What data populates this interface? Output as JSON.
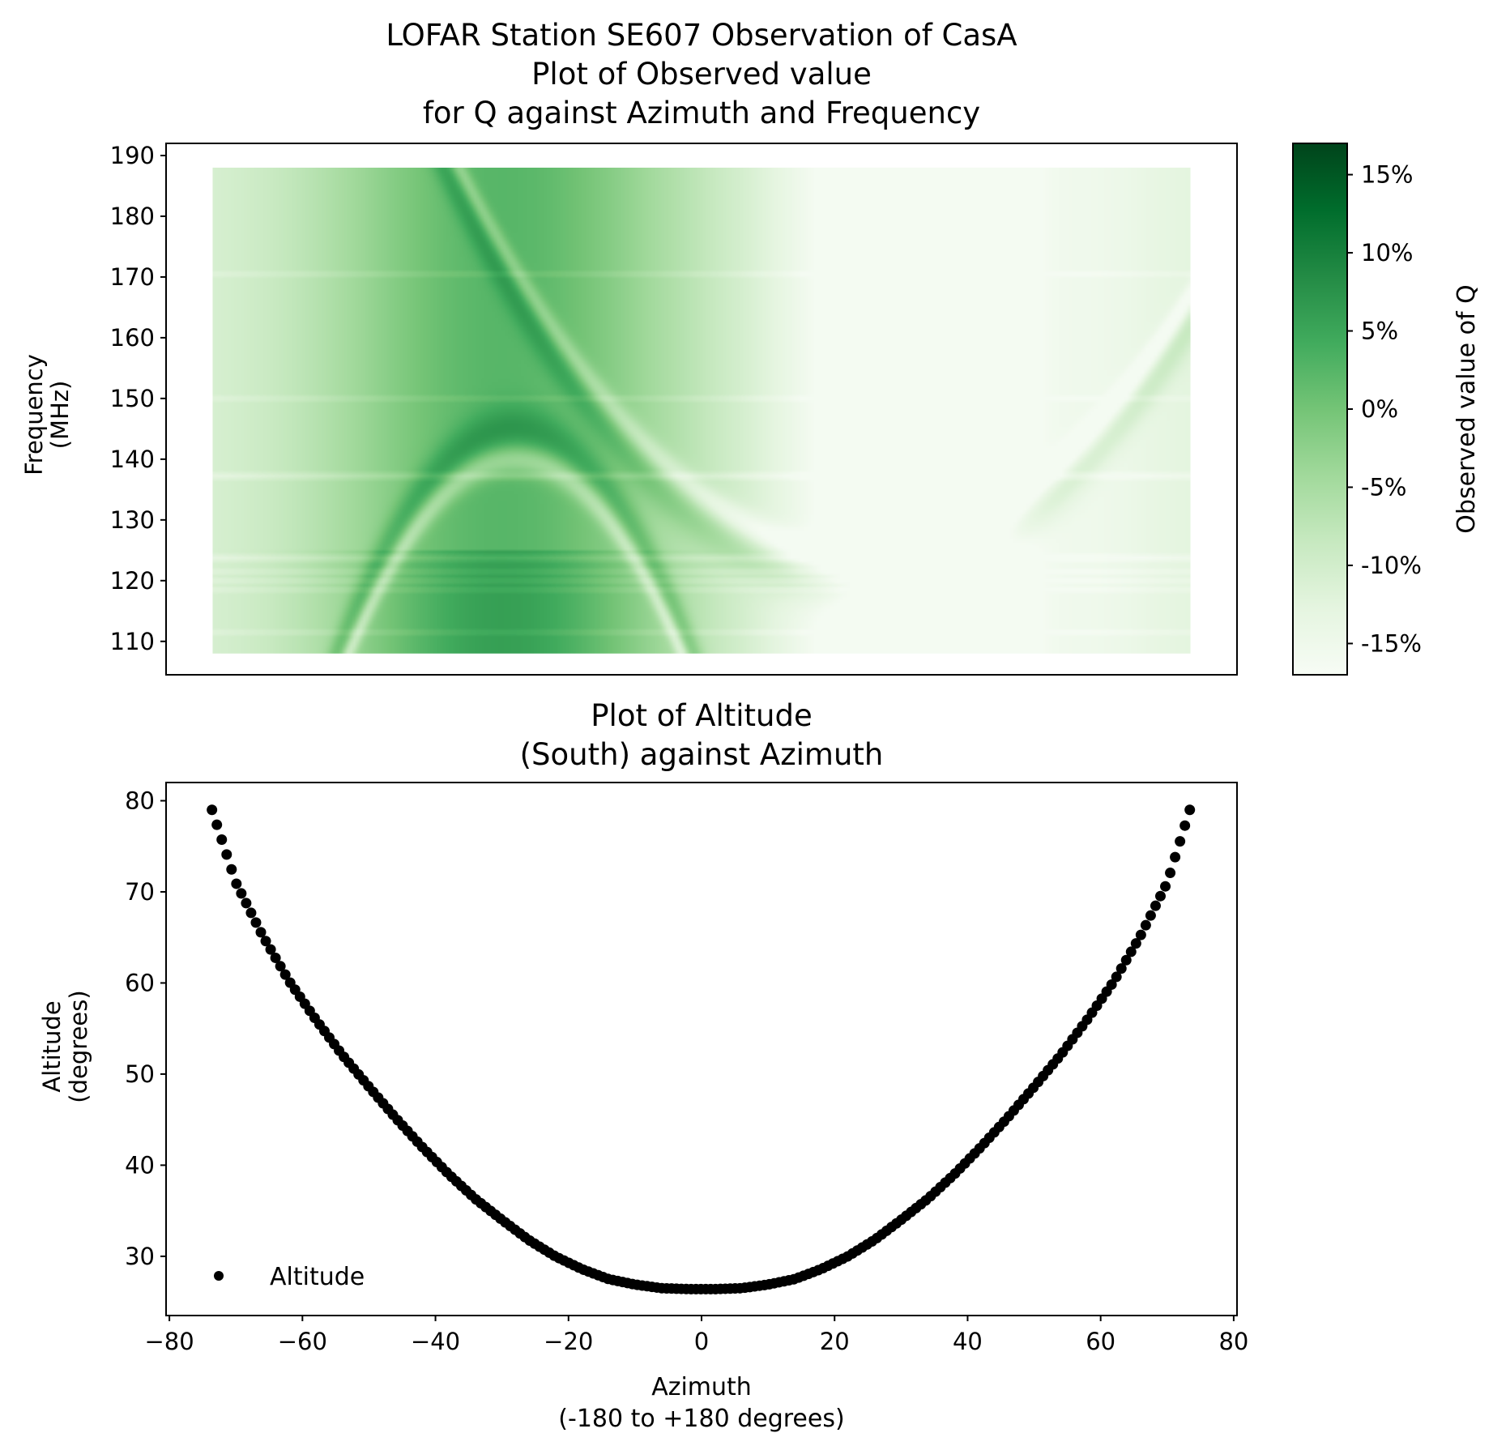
{
  "chart_data": [
    {
      "type": "heatmap",
      "title_lines": [
        "LOFAR Station SE607 Observation of CasA",
        "Plot of Observed value",
        "for Q against Azimuth and Frequency"
      ],
      "ylabel_lines": [
        "Frequency",
        "(MHz)"
      ],
      "xlim": [
        -80.5,
        80.5
      ],
      "ylim": [
        104.5,
        192
      ],
      "data_extent": {
        "x": [
          -73.5,
          73.5
        ],
        "y": [
          108,
          188
        ]
      },
      "yticks": [
        110,
        120,
        130,
        140,
        150,
        160,
        170,
        180,
        190
      ],
      "colormap": "Greens",
      "color_range": [
        -17,
        17
      ],
      "colorbar_label": "Observed value of Q",
      "colorbar_ticks": [
        {
          "value": 15,
          "label": "15%"
        },
        {
          "value": 10,
          "label": "10%"
        },
        {
          "value": 5,
          "label": "5%"
        },
        {
          "value": 0,
          "label": "0%"
        },
        {
          "value": -5,
          "label": "-5%"
        },
        {
          "value": -10,
          "label": "-10%"
        },
        {
          "value": -15,
          "label": "-15%"
        }
      ],
      "features": {
        "background_peak_azimuth": -30,
        "background_low_azimuth": 38,
        "arc_1": {
          "vertex_azimuth": -28,
          "vertex_frequency": 140,
          "curvature": 0.051,
          "sign": -1
        },
        "arc_2": {
          "vertex_azimuth": 24,
          "vertex_frequency": 124,
          "curvature": 0.0175,
          "sign": 1
        },
        "rfi_lines_mhz": [
          111.5,
          118.5,
          120,
          121.5,
          123.5,
          124,
          137,
          137.5,
          150,
          170.5
        ]
      }
    },
    {
      "type": "scatter",
      "title_lines": [
        "Plot of Altitude",
        "(South) against Azimuth"
      ],
      "xlabel_lines": [
        "Azimuth",
        "(-180 to +180 degrees)"
      ],
      "ylabel_lines": [
        "Altitude",
        "(degrees)"
      ],
      "xlim": [
        -80.5,
        80.5
      ],
      "ylim": [
        23.5,
        82
      ],
      "xticks": [
        {
          "value": -80,
          "label": "−80"
        },
        {
          "value": -60,
          "label": "−60"
        },
        {
          "value": -40,
          "label": "−40"
        },
        {
          "value": -20,
          "label": "−20"
        },
        {
          "value": 0,
          "label": "0"
        },
        {
          "value": 20,
          "label": "20"
        },
        {
          "value": 40,
          "label": "40"
        },
        {
          "value": 60,
          "label": "60"
        },
        {
          "value": 80,
          "label": "80"
        }
      ],
      "yticks": [
        30,
        40,
        50,
        60,
        70,
        80
      ],
      "series": [
        {
          "name": "Altitude",
          "color": "#000000"
        }
      ],
      "legend": {
        "label": "Altitude",
        "position": "lower-left"
      },
      "x": [
        -73.6,
        -70,
        -66,
        -62,
        -58,
        -54,
        -50,
        -46,
        -42,
        -38,
        -34,
        -30,
        -26,
        -22,
        -18,
        -14,
        -10,
        -6,
        -2,
        0,
        2,
        6,
        10,
        14,
        18,
        22,
        26,
        30,
        34,
        38,
        42,
        46,
        50,
        54,
        58,
        62,
        66,
        70,
        73.4
      ],
      "y": [
        79,
        71,
        65.2,
        60.2,
        56,
        52.1,
        48.6,
        45.2,
        42,
        39,
        36.3,
        34,
        31.8,
        30,
        28.6,
        27.5,
        26.9,
        26.5,
        26.4,
        26.4,
        26.4,
        26.5,
        26.9,
        27.5,
        28.6,
        30,
        31.8,
        34,
        36.3,
        39,
        42,
        45.2,
        48.6,
        52.1,
        56,
        60.2,
        65.2,
        71,
        79
      ]
    }
  ]
}
